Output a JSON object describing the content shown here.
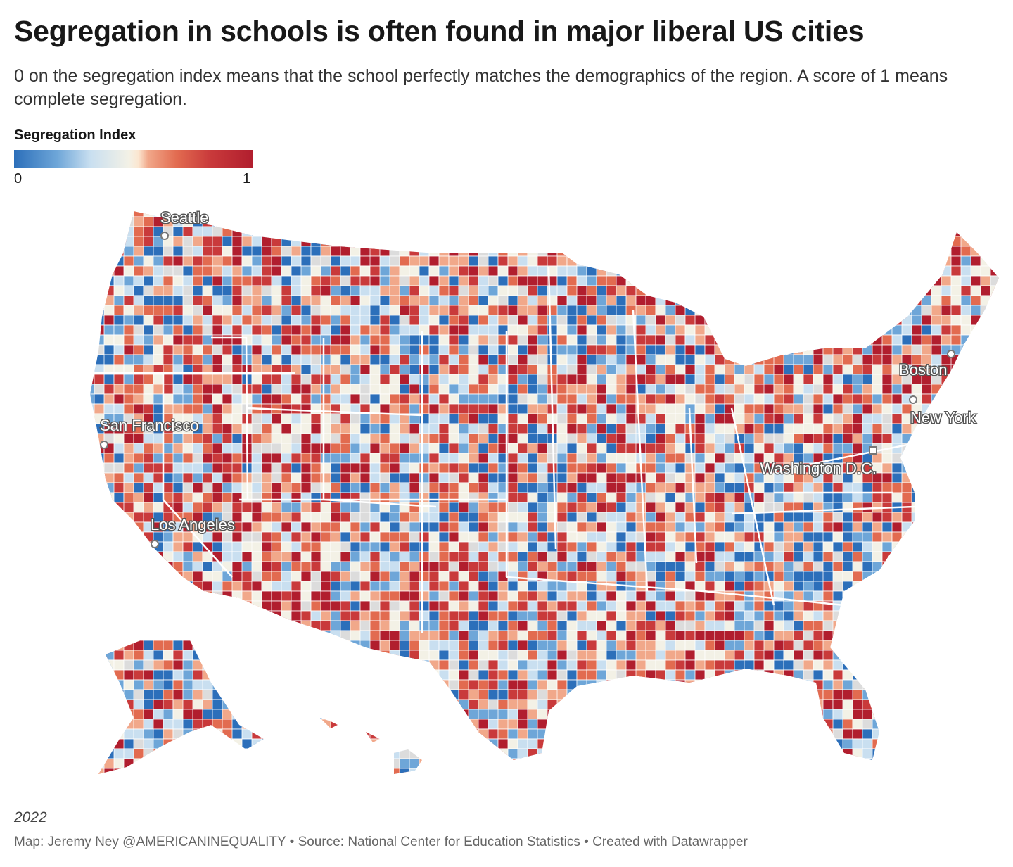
{
  "header": {
    "title": "Segregation in schools is often found in major liberal US cities",
    "subtitle": "0 on the segregation index means that the school perfectly matches the demographics of the region. A score of 1 means complete segregation."
  },
  "legend": {
    "title": "Segregation Index",
    "min_label": "0",
    "max_label": "1",
    "colors": [
      "#2c6fba",
      "#6ea6d8",
      "#c9dff0",
      "#f3f1e6",
      "#f1a88a",
      "#e26b50",
      "#c93a3b",
      "#b11e2e"
    ]
  },
  "map": {
    "cities": [
      {
        "name": "Seattle"
      },
      {
        "name": "San Francisco"
      },
      {
        "name": "Los Angeles"
      },
      {
        "name": "Boston"
      },
      {
        "name": "New York"
      },
      {
        "name": "Washington D.C."
      }
    ]
  },
  "footer": {
    "year": "2022",
    "notes": "Map: Jeremy Ney @AMERICANINEQUALITY • Source: National Center for Education Statistics • Created with Datawrapper"
  }
}
